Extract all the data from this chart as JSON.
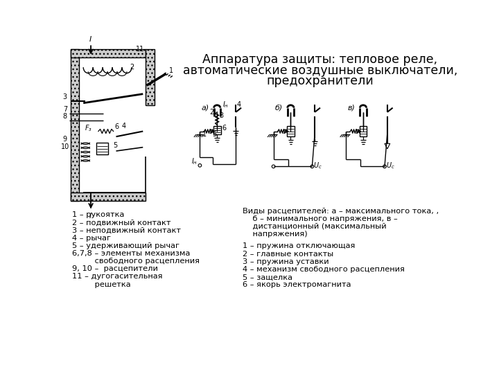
{
  "title_line1": "Аппаратура защиты: тепловое реле,",
  "title_line2": "автоматические воздушные выключатели,",
  "title_line3": "предохранители",
  "left_labels": [
    "1 – рукоятка",
    "2 – подвижный контакт",
    "3 – неподвижный контакт",
    "4 – рычаг",
    "5 – удерживающий рычаг",
    "6,7,8 – элементы механизма",
    "         свободного расцепления",
    "9, 10 –  расцепители",
    "11 – дугогасительная",
    "         решетка"
  ],
  "right_caption_lines": [
    "Виды расцепителей: а – максимального тока, ,",
    "    б – минимального напряжения, в –",
    "    дистанционный (максимальный",
    "    напряжения)"
  ],
  "right_labels": [
    "1 – пружина отключающая",
    "2 – главные контакты",
    "3 – пружина уставки",
    "4 – механизм свободного расцепления",
    "5 – защелка",
    "6 – якорь электромагнита"
  ]
}
